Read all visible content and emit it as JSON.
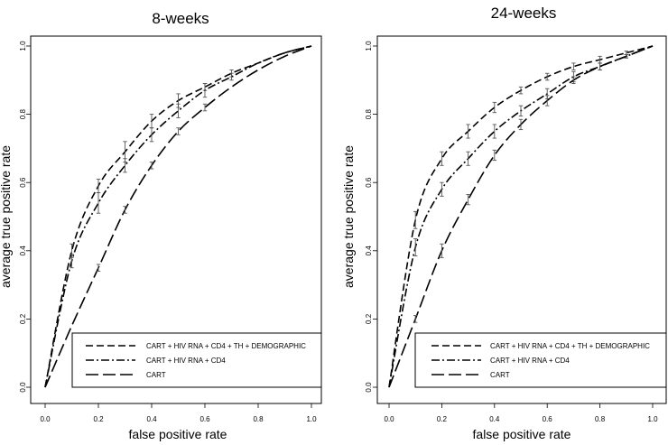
{
  "chart_data": [
    {
      "type": "line",
      "title": "8-weeks",
      "xlabel": "false positive rate",
      "ylabel": "average true positive rate",
      "xlim": [
        0,
        1
      ],
      "ylim": [
        0,
        1
      ],
      "x_ticks": [
        "0.0",
        "0.2",
        "0.4",
        "0.6",
        "0.8",
        "1.0"
      ],
      "y_ticks": [
        "0.0",
        "0.2",
        "0.4",
        "0.6",
        "0.8",
        "1.0"
      ],
      "grid": false,
      "legend_position": "bottom-right",
      "series": [
        {
          "name": "CART + HIV RNA + CD4 + TH + DEMOGRAPHIC",
          "dash": "8,4",
          "x": [
            0,
            0.1,
            0.2,
            0.3,
            0.4,
            0.5,
            0.6,
            0.7,
            0.8,
            0.9,
            1.0
          ],
          "y": [
            0,
            0.4,
            0.59,
            0.69,
            0.78,
            0.84,
            0.88,
            0.92,
            0.95,
            0.98,
            1.0
          ],
          "err": [
            0,
            0.02,
            0.02,
            0.03,
            0.02,
            0.02,
            0.01,
            0.01,
            0.01,
            0.005,
            0
          ],
          "error_bar_x": [
            0.1,
            0.2,
            0.3,
            0.4,
            0.5,
            0.6,
            0.7
          ]
        },
        {
          "name": "CART + HIV RNA + CD4",
          "dash": "9,3,2,3",
          "x": [
            0,
            0.1,
            0.2,
            0.3,
            0.4,
            0.5,
            0.6,
            0.7,
            0.8,
            0.9,
            1.0
          ],
          "y": [
            0,
            0.37,
            0.54,
            0.65,
            0.74,
            0.81,
            0.87,
            0.91,
            0.95,
            0.98,
            1.0
          ],
          "err": [
            0,
            0.02,
            0.03,
            0.02,
            0.02,
            0.02,
            0.02,
            0.01,
            0.01,
            0.005,
            0
          ],
          "error_bar_x": [
            0.1,
            0.2,
            0.3,
            0.4,
            0.5,
            0.6,
            0.7
          ]
        },
        {
          "name": "CART",
          "dash": "14,5",
          "x": [
            0,
            0.1,
            0.2,
            0.3,
            0.4,
            0.5,
            0.6,
            0.7,
            0.8,
            0.9,
            1.0
          ],
          "y": [
            0,
            0.18,
            0.35,
            0.52,
            0.65,
            0.75,
            0.82,
            0.88,
            0.93,
            0.97,
            1.0
          ],
          "err": [
            0,
            0.01,
            0.01,
            0.01,
            0.01,
            0.01,
            0.01,
            0.01,
            0.01,
            0.005,
            0
          ],
          "error_bar_x": [
            0.2,
            0.3,
            0.4,
            0.5,
            0.6
          ]
        }
      ]
    },
    {
      "type": "line",
      "title": "24-weeks",
      "xlabel": "false positive rate",
      "ylabel": "average true positive rate",
      "xlim": [
        0,
        1
      ],
      "ylim": [
        0,
        1
      ],
      "x_ticks": [
        "0.0",
        "0.2",
        "0.4",
        "0.6",
        "0.8",
        "1.0"
      ],
      "y_ticks": [
        "0.0",
        "0.2",
        "0.4",
        "0.6",
        "0.8",
        "1.0"
      ],
      "grid": false,
      "legend_position": "bottom-right",
      "series": [
        {
          "name": "CART + HIV RNA + CD4 + TH + DEMOGRAPHIC",
          "dash": "8,4",
          "x": [
            0,
            0.1,
            0.2,
            0.3,
            0.4,
            0.5,
            0.6,
            0.7,
            0.8,
            0.9,
            1.0
          ],
          "y": [
            0,
            0.49,
            0.67,
            0.75,
            0.82,
            0.87,
            0.91,
            0.94,
            0.96,
            0.98,
            1.0
          ],
          "err": [
            0,
            0.025,
            0.02,
            0.02,
            0.015,
            0.01,
            0.01,
            0.01,
            0.01,
            0.005,
            0
          ],
          "error_bar_x": [
            0.1,
            0.2,
            0.3,
            0.4,
            0.5,
            0.6,
            0.7,
            0.8,
            0.9
          ]
        },
        {
          "name": "CART + HIV RNA + CD4",
          "dash": "9,3,2,3",
          "x": [
            0,
            0.1,
            0.2,
            0.3,
            0.4,
            0.5,
            0.6,
            0.7,
            0.8,
            0.9,
            1.0
          ],
          "y": [
            0,
            0.41,
            0.58,
            0.67,
            0.75,
            0.81,
            0.86,
            0.91,
            0.94,
            0.97,
            1.0
          ],
          "err": [
            0,
            0.025,
            0.02,
            0.02,
            0.02,
            0.015,
            0.015,
            0.015,
            0.01,
            0.005,
            0
          ],
          "error_bar_x": [
            0.1,
            0.2,
            0.3,
            0.4,
            0.5,
            0.6,
            0.7,
            0.8,
            0.9
          ]
        },
        {
          "name": "CART",
          "dash": "14,5",
          "x": [
            0,
            0.1,
            0.2,
            0.3,
            0.4,
            0.5,
            0.6,
            0.7,
            0.8,
            0.9,
            1.0
          ],
          "y": [
            0,
            0.2,
            0.4,
            0.55,
            0.68,
            0.77,
            0.84,
            0.9,
            0.94,
            0.97,
            1.0
          ],
          "err": [
            0,
            0.01,
            0.02,
            0.015,
            0.015,
            0.015,
            0.015,
            0.01,
            0.01,
            0.005,
            0
          ],
          "error_bar_x": [
            0.1,
            0.2,
            0.3,
            0.4,
            0.5,
            0.6,
            0.7,
            0.8,
            0.9
          ]
        }
      ]
    }
  ]
}
